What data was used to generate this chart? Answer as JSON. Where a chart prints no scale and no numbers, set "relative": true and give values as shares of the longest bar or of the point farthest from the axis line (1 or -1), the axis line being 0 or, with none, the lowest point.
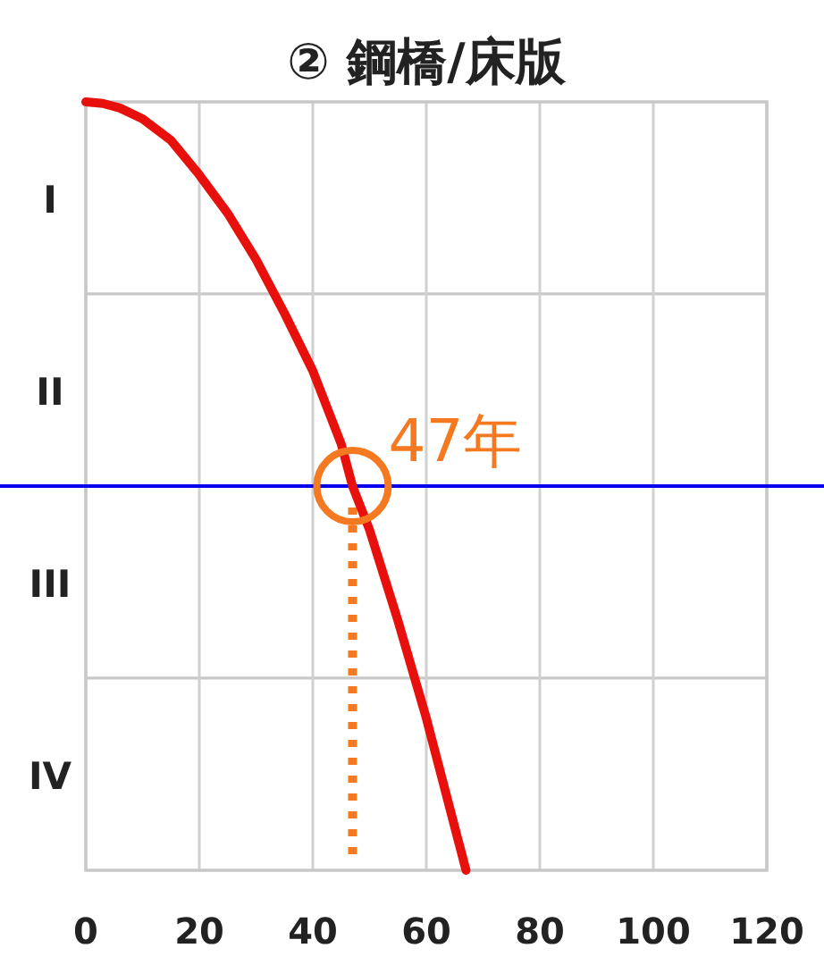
{
  "chart_data": {
    "type": "line",
    "title": "② 鋼橋/床版",
    "relative": true,
    "xlim": [
      0,
      120
    ],
    "xticks": [
      0,
      20,
      40,
      60,
      80,
      100,
      120
    ],
    "bands": [
      {
        "axis": "y",
        "from": 0.75,
        "to": 1,
        "label": "I",
        "color": "#ffffff"
      },
      {
        "axis": "y",
        "from": 0.5,
        "to": 0.75,
        "label": "II",
        "color": "#ffffff"
      },
      {
        "axis": "y",
        "from": 0.25,
        "to": 0.5,
        "label": "III",
        "color": "#ffffff"
      },
      {
        "axis": "y",
        "from": 0,
        "to": 0.25,
        "label": "IV",
        "color": "#ffffff"
      }
    ],
    "grid": "x",
    "series": [
      {
        "color": "#e8100c",
        "x": [
          0,
          3,
          6,
          10,
          15,
          20,
          25,
          30,
          35,
          40,
          45,
          47,
          50,
          55,
          60,
          67
        ],
        "values": [
          1,
          0.998,
          0.992,
          0.978,
          0.95,
          0.905,
          0.855,
          0.795,
          0.725,
          0.65,
          0.555,
          0.5,
          0.443,
          0.325,
          0.198,
          0
        ]
      },
      {
        "type": "scatter",
        "color": "#f47920",
        "marker": "circle",
        "x": [
          47
        ],
        "values": [
          0.5
        ]
      }
    ],
    "ref_lines": [
      {
        "axis": "y",
        "value": 0.5,
        "color": "#0000ee",
        "line_style": "solid"
      },
      {
        "axis": "x",
        "value": 47,
        "color": "#f47920",
        "line_style": "dotted"
      }
    ],
    "annotations": [
      {
        "text": "47年",
        "x": 47,
        "y": 0.5
      }
    ]
  }
}
